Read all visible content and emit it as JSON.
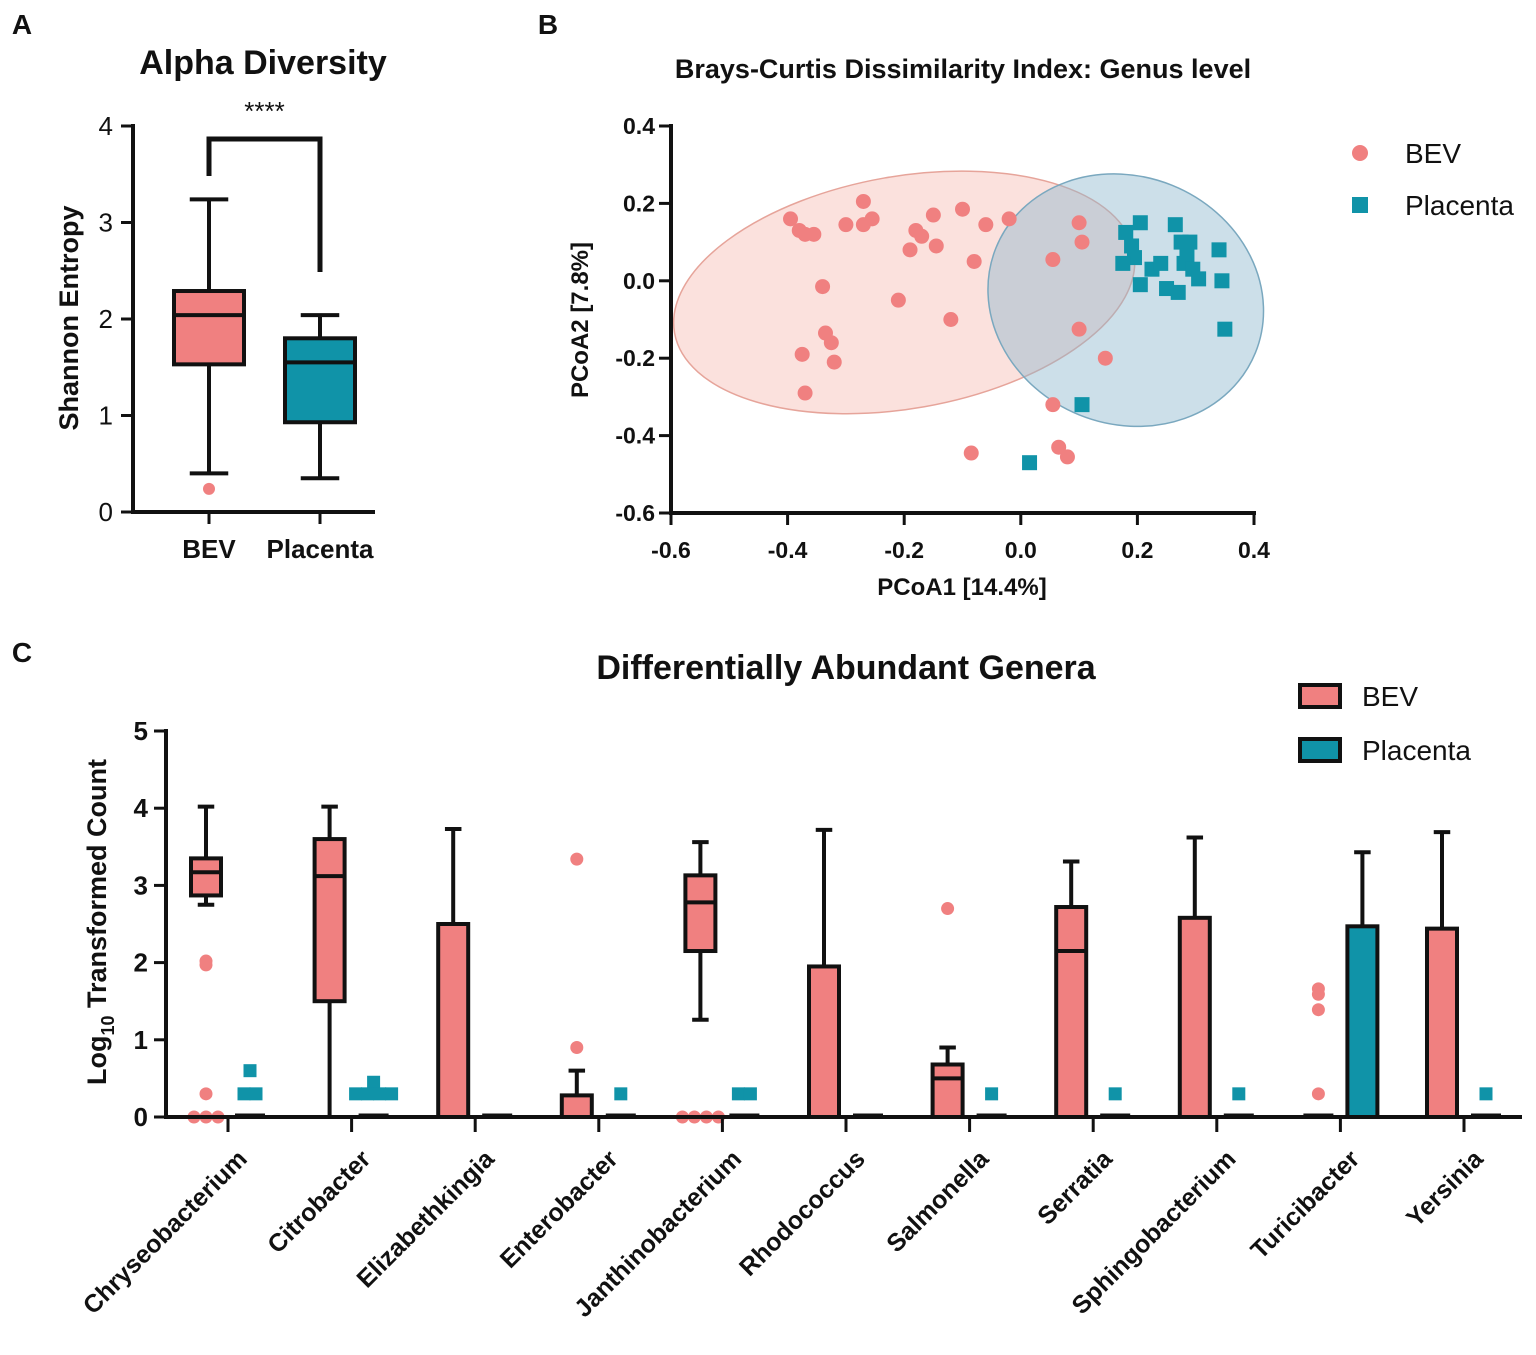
{
  "colors": {
    "bev": "#f08080",
    "placenta": "#1093a8",
    "ink": "#111111",
    "bg": "#ffffff"
  },
  "chart_data": [
    {
      "panel": "A",
      "type": "box",
      "title": "Alpha Diversity",
      "ylabel": "Shannon Entropy",
      "ylim": [
        0,
        4
      ],
      "yticks": [
        "0",
        "1",
        "2",
        "3",
        "4"
      ],
      "significance": "****",
      "groups": [
        {
          "name": "BEV",
          "min": 0.4,
          "q1": 1.53,
          "median": 2.04,
          "q3": 2.29,
          "max": 3.24,
          "outliers": [
            0.24
          ]
        },
        {
          "name": "Placenta",
          "min": 0.35,
          "q1": 0.93,
          "median": 1.55,
          "q3": 1.8,
          "max": 2.04,
          "outliers": []
        }
      ]
    },
    {
      "panel": "B",
      "type": "scatter",
      "title": "Brays-Curtis Dissimilarity Index: Genus level",
      "xlabel": "PCoA1 [14.4%]",
      "ylabel": "PCoA2 [7.8%]",
      "xlim": [
        -0.6,
        0.4
      ],
      "ylim": [
        -0.6,
        0.4
      ],
      "xticks": [
        "-0.6",
        "-0.4",
        "-0.2",
        "0.0",
        "0.2",
        "0.4"
      ],
      "yticks": [
        "-0.6",
        "-0.4",
        "-0.2",
        "0.0",
        "0.2",
        "0.4"
      ],
      "legend": [
        "BEV",
        "Placenta"
      ],
      "ellipses": [
        {
          "series": "BEV",
          "cx": -0.2,
          "cy": -0.03,
          "rx": 0.4,
          "ry": 0.3,
          "angle": -10
        },
        {
          "series": "Placenta",
          "cx": 0.18,
          "cy": -0.05,
          "rx": 0.24,
          "ry": 0.32,
          "angle": 22
        }
      ],
      "series": [
        {
          "name": "BEV",
          "points": [
            [
              -0.395,
              0.16
            ],
            [
              -0.38,
              0.13
            ],
            [
              -0.37,
              0.12
            ],
            [
              -0.355,
              0.12
            ],
            [
              -0.34,
              -0.015
            ],
            [
              -0.3,
              0.145
            ],
            [
              -0.27,
              0.205
            ],
            [
              -0.27,
              0.145
            ],
            [
              -0.255,
              0.16
            ],
            [
              -0.21,
              -0.05
            ],
            [
              -0.19,
              0.08
            ],
            [
              -0.18,
              0.13
            ],
            [
              -0.17,
              0.115
            ],
            [
              -0.15,
              0.17
            ],
            [
              -0.145,
              0.09
            ],
            [
              -0.12,
              -0.1
            ],
            [
              -0.1,
              0.185
            ],
            [
              -0.08,
              0.05
            ],
            [
              -0.06,
              0.145
            ],
            [
              -0.02,
              0.16
            ],
            [
              0.055,
              0.055
            ],
            [
              0.1,
              0.15
            ],
            [
              0.105,
              0.1
            ],
            [
              -0.335,
              -0.135
            ],
            [
              -0.325,
              -0.16
            ],
            [
              -0.32,
              -0.21
            ],
            [
              -0.375,
              -0.19
            ],
            [
              -0.37,
              -0.29
            ],
            [
              0.1,
              -0.125
            ],
            [
              0.145,
              -0.2
            ],
            [
              0.055,
              -0.32
            ],
            [
              0.065,
              -0.43
            ],
            [
              0.08,
              -0.455
            ],
            [
              -0.085,
              -0.445
            ]
          ]
        },
        {
          "name": "Placenta",
          "points": [
            [
              0.18,
              0.125
            ],
            [
              0.19,
              0.09
            ],
            [
              0.205,
              0.15
            ],
            [
              0.195,
              0.06
            ],
            [
              0.175,
              0.045
            ],
            [
              0.205,
              -0.01
            ],
            [
              0.225,
              0.03
            ],
            [
              0.24,
              0.045
            ],
            [
              0.25,
              -0.02
            ],
            [
              0.27,
              -0.03
            ],
            [
              0.265,
              0.145
            ],
            [
              0.275,
              0.1
            ],
            [
              0.29,
              0.1
            ],
            [
              0.285,
              0.065
            ],
            [
              0.28,
              0.045
            ],
            [
              0.295,
              0.03
            ],
            [
              0.305,
              0.005
            ],
            [
              0.34,
              0.08
            ],
            [
              0.345,
              0.0
            ],
            [
              0.35,
              -0.125
            ],
            [
              0.105,
              -0.32
            ],
            [
              0.015,
              -0.47
            ]
          ]
        }
      ]
    },
    {
      "panel": "C",
      "type": "box",
      "title": "Differentially  Abundant Genera",
      "ylabel_main": "Log",
      "ylabel_sub": "10",
      "ylabel_rest": " Transformed Count",
      "ylim": [
        0,
        5
      ],
      "yticks": [
        "0",
        "1",
        "2",
        "3",
        "4",
        "5"
      ],
      "legend": [
        "BEV",
        "Placenta"
      ],
      "categories": [
        "Chryseobacterium",
        "Citrobacter",
        "Elizabethkingia",
        "Enterobacter",
        "Janthinobacterium",
        "Rhodococcus",
        "Salmonella",
        "Serratia",
        "Sphingobacterium",
        "Turicibacter",
        "Yersinia"
      ],
      "series": [
        {
          "name": "BEV",
          "boxes": [
            {
              "min": 2.75,
              "q1": 2.87,
              "median": 3.17,
              "q3": 3.35,
              "max": 4.02,
              "outliers": [
                1.97,
                2.02,
                0.3,
                0,
                0,
                0
              ]
            },
            {
              "min": 0,
              "q1": 1.5,
              "median": 3.12,
              "q3": 3.6,
              "max": 4.02,
              "outliers": []
            },
            {
              "min": 0,
              "q1": 0,
              "median": 0,
              "q3": 2.5,
              "max": 3.73,
              "outliers": []
            },
            {
              "min": 0,
              "q1": 0,
              "median": 0,
              "q3": 0.28,
              "max": 0.6,
              "outliers": [
                3.34,
                0.9
              ]
            },
            {
              "min": 1.26,
              "q1": 2.15,
              "median": 2.78,
              "q3": 3.13,
              "max": 3.56,
              "outliers": [
                0,
                0,
                0,
                0
              ]
            },
            {
              "min": 0,
              "q1": 0,
              "median": 0,
              "q3": 1.95,
              "max": 3.72,
              "outliers": []
            },
            {
              "min": 0,
              "q1": 0,
              "median": 0.5,
              "q3": 0.68,
              "max": 0.9,
              "outliers": [
                2.7
              ]
            },
            {
              "min": 0,
              "q1": 0,
              "median": 2.15,
              "q3": 2.72,
              "max": 3.31,
              "outliers": []
            },
            {
              "min": 0,
              "q1": 0,
              "median": 0,
              "q3": 2.58,
              "max": 3.62,
              "outliers": []
            },
            {
              "min": 0,
              "q1": 0,
              "median": 0,
              "q3": 0,
              "max": 0,
              "outliers": [
                1.59,
                1.66,
                1.39,
                0.3
              ]
            },
            {
              "min": 0,
              "q1": 0,
              "median": 0,
              "q3": 2.44,
              "max": 3.69,
              "outliers": []
            }
          ]
        },
        {
          "name": "Placenta",
          "boxes": [
            {
              "min": 0,
              "q1": 0,
              "median": 0,
              "q3": 0,
              "max": 0,
              "outliers": [
                0.6,
                0.3,
                0.3
              ]
            },
            {
              "min": 0,
              "q1": 0,
              "median": 0,
              "q3": 0,
              "max": 0,
              "outliers": [
                0.45,
                0.3,
                0.3,
                0.3,
                0.3
              ]
            },
            {
              "min": 0,
              "q1": 0,
              "median": 0,
              "q3": 0,
              "max": 0,
              "outliers": []
            },
            {
              "min": 0,
              "q1": 0,
              "median": 0,
              "q3": 0,
              "max": 0,
              "outliers": [
                0.3
              ]
            },
            {
              "min": 0,
              "q1": 0,
              "median": 0,
              "q3": 0,
              "max": 0,
              "outliers": [
                0.3,
                0.3
              ]
            },
            {
              "min": 0,
              "q1": 0,
              "median": 0,
              "q3": 0,
              "max": 0,
              "outliers": []
            },
            {
              "min": 0,
              "q1": 0,
              "median": 0,
              "q3": 0,
              "max": 0,
              "outliers": [
                0.3
              ]
            },
            {
              "min": 0,
              "q1": 0,
              "median": 0,
              "q3": 0,
              "max": 0,
              "outliers": [
                0.3
              ]
            },
            {
              "min": 0,
              "q1": 0,
              "median": 0,
              "q3": 0,
              "max": 0,
              "outliers": [
                0.3
              ]
            },
            {
              "min": 0,
              "q1": 0,
              "median": 0,
              "q3": 2.47,
              "max": 3.43,
              "outliers": []
            },
            {
              "min": 0,
              "q1": 0,
              "median": 0,
              "q3": 0,
              "max": 0,
              "outliers": [
                0.3
              ]
            }
          ]
        }
      ]
    }
  ]
}
